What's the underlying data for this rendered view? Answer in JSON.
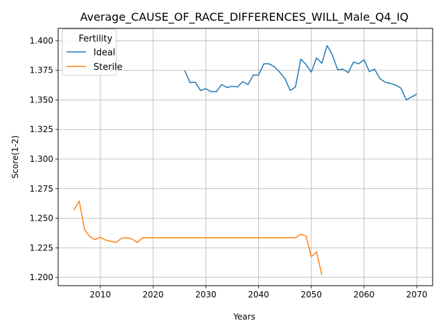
{
  "chart_data": {
    "type": "line",
    "title": "Average_CAUSE_OF_RACE_DIFFERENCES_WILL_Male_Q4_IQ",
    "xlabel": "Years",
    "ylabel": "Score(1-2)",
    "xlim": [
      2002,
      2073
    ],
    "ylim": [
      1.193,
      1.4105
    ],
    "x_ticks": [
      2010,
      2020,
      2030,
      2040,
      2050,
      2060,
      2070
    ],
    "y_ticks": [
      1.2,
      1.225,
      1.25,
      1.275,
      1.3,
      1.325,
      1.35,
      1.375,
      1.4
    ],
    "y_tick_labels": [
      "1.200",
      "1.225",
      "1.250",
      "1.275",
      "1.300",
      "1.325",
      "1.350",
      "1.375",
      "1.400"
    ],
    "grid": true,
    "legend": {
      "title": "Fertility",
      "placement": "top-left"
    },
    "series": [
      {
        "name": "Ideal",
        "color": "#1f77b4",
        "x": [
          2026,
          2027,
          2028,
          2029,
          2030,
          2031,
          2032,
          2033,
          2034,
          2035,
          2036,
          2037,
          2038,
          2039,
          2040,
          2041,
          2042,
          2043,
          2044,
          2045,
          2046,
          2047,
          2048,
          2049,
          2050,
          2051,
          2052,
          2053,
          2054,
          2055,
          2056,
          2057,
          2058,
          2059,
          2060,
          2061,
          2062,
          2063,
          2064,
          2065,
          2066,
          2067,
          2068,
          2069,
          2070
        ],
        "y": [
          1.375,
          1.3645,
          1.365,
          1.358,
          1.3595,
          1.357,
          1.357,
          1.363,
          1.3605,
          1.3615,
          1.361,
          1.3655,
          1.363,
          1.371,
          1.371,
          1.3805,
          1.3805,
          1.378,
          1.3735,
          1.368,
          1.358,
          1.361,
          1.3845,
          1.38,
          1.3735,
          1.3855,
          1.381,
          1.396,
          1.388,
          1.3755,
          1.376,
          1.373,
          1.382,
          1.3805,
          1.384,
          1.374,
          1.376,
          1.368,
          1.365,
          1.364,
          1.3625,
          1.36,
          1.35,
          1.3525,
          1.355
        ]
      },
      {
        "name": "Sterile",
        "color": "#ff7f0e",
        "x": [
          2005,
          2006,
          2007,
          2008,
          2009,
          2010,
          2011,
          2012,
          2013,
          2014,
          2015,
          2016,
          2017,
          2018,
          2019,
          2020,
          2021,
          2022,
          2023,
          2024,
          2025,
          2026,
          2027,
          2028,
          2029,
          2030,
          2031,
          2032,
          2033,
          2034,
          2035,
          2036,
          2037,
          2038,
          2039,
          2040,
          2041,
          2042,
          2043,
          2044,
          2045,
          2046,
          2047,
          2048,
          2049,
          2050,
          2051,
          2052
        ],
        "y": [
          1.257,
          1.2645,
          1.2405,
          1.2345,
          1.232,
          1.234,
          1.2315,
          1.2305,
          1.2295,
          1.233,
          1.2335,
          1.2325,
          1.2295,
          1.2335,
          1.2335,
          1.2335,
          1.2335,
          1.2335,
          1.2335,
          1.2335,
          1.2335,
          1.2335,
          1.2335,
          1.2335,
          1.2335,
          1.2335,
          1.2335,
          1.2335,
          1.2335,
          1.2335,
          1.2335,
          1.2335,
          1.2335,
          1.2335,
          1.2335,
          1.2335,
          1.2335,
          1.2335,
          1.2335,
          1.2335,
          1.2335,
          1.2335,
          1.2335,
          1.2365,
          1.235,
          1.2175,
          1.2215,
          1.202
        ]
      }
    ]
  }
}
